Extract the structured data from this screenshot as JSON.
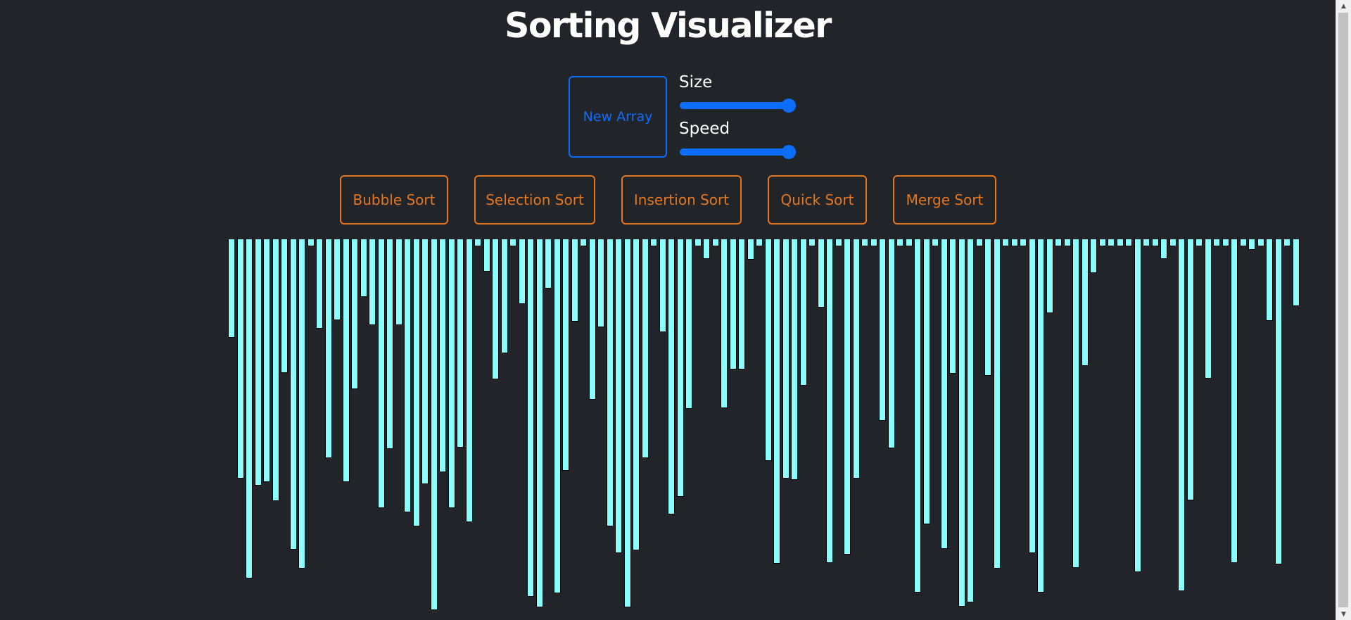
{
  "header": {
    "title": "Sorting Visualizer"
  },
  "controls": {
    "new_array_label": "New Array",
    "size": {
      "label": "Size",
      "value_fraction": 1.0
    },
    "speed": {
      "label": "Speed",
      "value_fraction": 1.0
    }
  },
  "sort_buttons": [
    {
      "label": "Bubble Sort"
    },
    {
      "label": "Selection Sort"
    },
    {
      "label": "Insertion Sort"
    },
    {
      "label": "Quick Sort"
    },
    {
      "label": "Merge Sort"
    }
  ],
  "array": {
    "bar_color": "#8affff",
    "values": [
      130,
      330,
      472,
      340,
      335,
      362,
      180,
      431,
      458,
      0,
      117,
      301,
      105,
      335,
      203,
      72,
      112,
      372,
      288,
      112,
      378,
      398,
      338,
      517,
      321,
      372,
      286,
      392,
      0,
      36,
      189,
      152,
      0,
      82,
      498,
      513,
      60,
      493,
      319,
      107,
      0,
      218,
      115,
      398,
      436,
      513,
      432,
      301,
      0,
      122,
      381,
      356,
      231,
      0,
      18,
      0,
      230,
      175,
      175,
      19,
      0,
      305,
      451,
      330,
      332,
      198,
      0,
      87,
      450,
      0,
      438,
      330,
      0,
      0,
      248,
      287,
      0,
      0,
      492,
      395,
      0,
      430,
      181,
      512,
      506,
      0,
      184,
      458,
      0,
      0,
      0,
      436,
      492,
      95,
      0,
      0,
      457,
      170,
      38,
      0,
      0,
      0,
      0,
      463,
      0,
      0,
      18,
      0,
      490,
      361,
      0,
      188,
      0,
      0,
      450,
      0,
      5,
      0,
      106,
      452,
      0,
      85
    ]
  },
  "colors": {
    "background": "#212429",
    "primary": "#0d6efd",
    "sort_accent": "#e5761f",
    "bar": "#8affff"
  }
}
